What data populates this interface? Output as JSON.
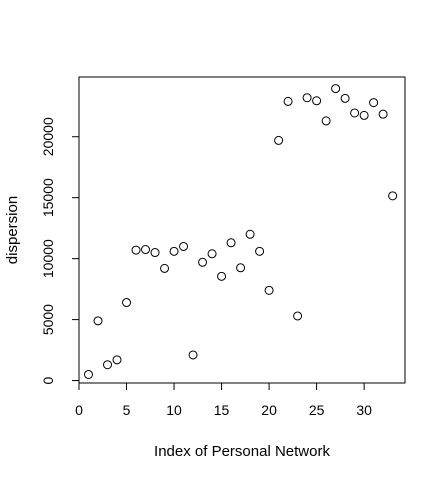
{
  "chart_data": {
    "type": "scatter",
    "title": "",
    "xlabel": "Index of Personal Network",
    "ylabel": "dispersion",
    "xlim": [
      0,
      34.3
    ],
    "ylim": [
      -200,
      24900
    ],
    "x_ticks": [
      0,
      5,
      10,
      15,
      20,
      25,
      30
    ],
    "y_ticks": [
      0,
      5000,
      10000,
      15000,
      20000
    ],
    "grid": false,
    "legend": "none",
    "x": [
      1,
      2,
      3,
      4,
      5,
      6,
      7,
      8,
      9,
      10,
      11,
      12,
      13,
      14,
      15,
      16,
      17,
      18,
      19,
      20,
      21,
      22,
      23,
      24,
      25,
      26,
      27,
      28,
      29,
      30,
      31,
      32,
      33
    ],
    "y": [
      500,
      4900,
      1300,
      1700,
      6400,
      10700,
      10750,
      10500,
      9200,
      10600,
      11000,
      2100,
      9700,
      10400,
      8550,
      11300,
      9250,
      12000,
      10600,
      7400,
      19700,
      22900,
      5300,
      23200,
      22950,
      21300,
      23950,
      23150,
      21950,
      21750,
      22800,
      21850,
      15150
    ]
  }
}
